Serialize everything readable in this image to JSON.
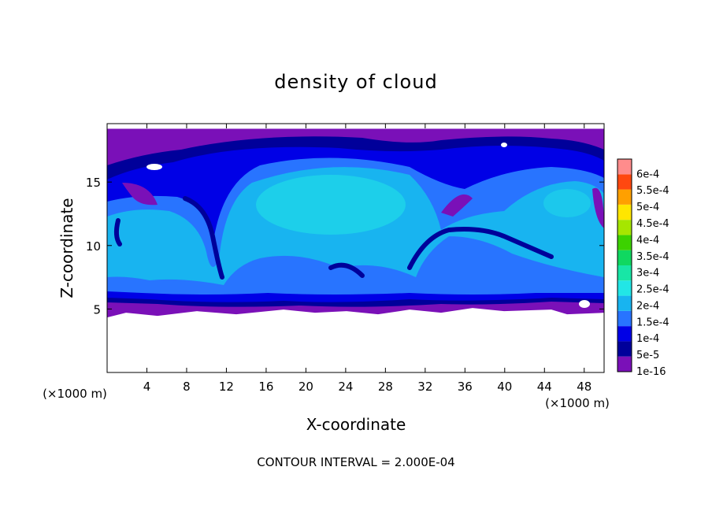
{
  "chart_data": {
    "type": "heatmap",
    "title": "density of cloud",
    "xlabel": "X-coordinate",
    "ylabel": "Z-coordinate",
    "x_unit_note": "(×1000 m)",
    "z_unit_note": "(×1000 m)",
    "footer": "CONTOUR INTERVAL = 2.000E-04",
    "xlim": [
      0,
      50
    ],
    "ylim": [
      0,
      19.6
    ],
    "x_ticks": [
      4,
      8,
      12,
      16,
      20,
      24,
      28,
      32,
      36,
      40,
      44,
      48
    ],
    "x_tick_labels": [
      "4",
      "8",
      "12",
      "16",
      "20",
      "24",
      "28",
      "32",
      "36",
      "40",
      "44",
      "48"
    ],
    "y_ticks": [
      5,
      10,
      15
    ],
    "y_tick_labels": [
      "5",
      "10",
      "15"
    ],
    "cloud_base_km": 5.2,
    "cloud_top_km": 19.2,
    "colorbar": {
      "labels": [
        "1e-16",
        "5e-5",
        "1e-4",
        "1.5e-4",
        "2e-4",
        "2.5e-4",
        "3e-4",
        "3.5e-4",
        "4e-4",
        "4.5e-4",
        "5e-4",
        "5.5e-4",
        "6e-4"
      ],
      "colors": [
        "#7a10b8",
        "#00009a",
        "#0000e6",
        "#2874ff",
        "#18b4f0",
        "#22e6e6",
        "#18e6a6",
        "#10d860",
        "#3cd200",
        "#a6e600",
        "#ffe600",
        "#ffa000",
        "#ff4810",
        "#ff8c8c"
      ]
    },
    "field_colors": {
      "edge": "#7a10b8",
      "dark": "#00009a",
      "blue": "#0000e6",
      "mid": "#2874ff",
      "core": "#18b4f0",
      "peak": "#22e6e6"
    }
  }
}
